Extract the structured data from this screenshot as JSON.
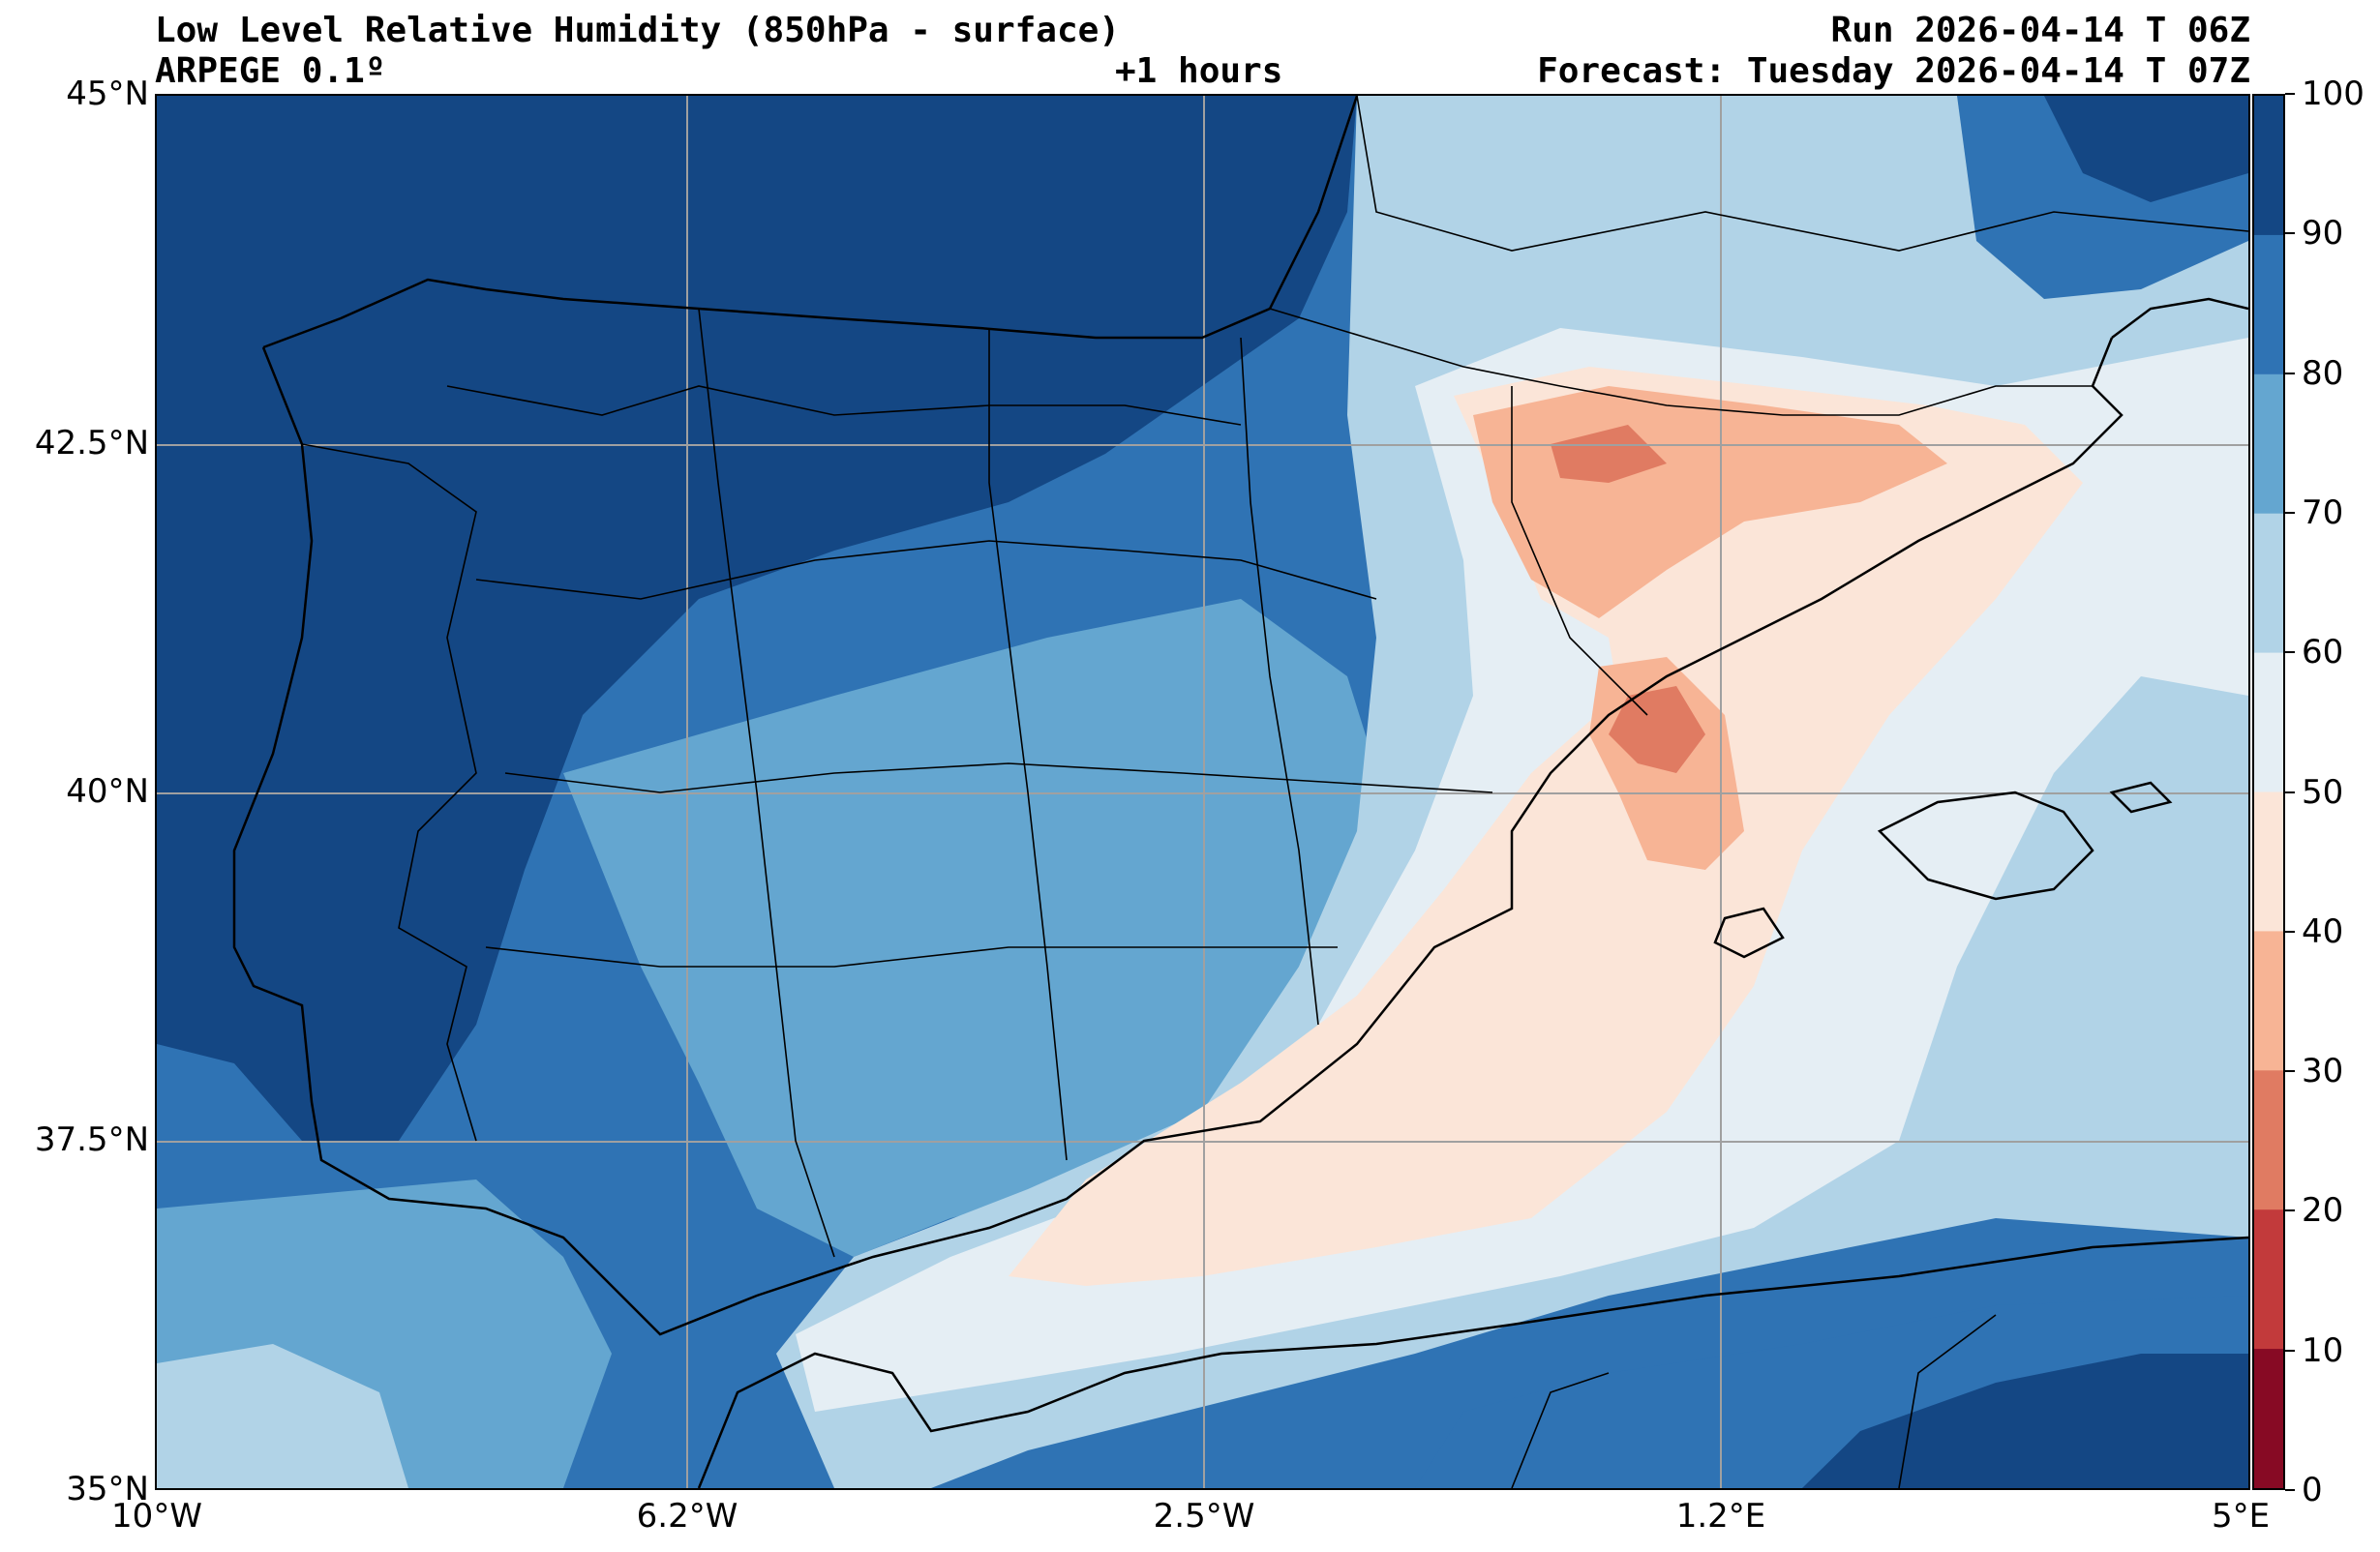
{
  "header": {
    "title_left": "Low Level Relative Humidity (850hPa - surface)",
    "model": "ARPEGE 0.1º",
    "lead_time": "+1 hours",
    "run": "Run 2026-04-14 T 06Z",
    "forecast": "Forecast: Tuesday 2026-04-14 T 07Z"
  },
  "map": {
    "region": "Iberian Peninsula and Western Mediterranean",
    "lat_ticks": [
      "45°N",
      "42.5°N",
      "40°N",
      "37.5°N",
      "35°N"
    ],
    "lon_ticks": [
      "10°W",
      "6.2°W",
      "2.5°W",
      "1.2°E",
      "5°E"
    ]
  },
  "colorbar": {
    "labels": [
      "100",
      "90",
      "80",
      "70",
      "60",
      "50",
      "40",
      "30",
      "20",
      "10",
      "0"
    ],
    "colors": [
      "#144784",
      "#2f73b4",
      "#64a6d0",
      "#b1d3e7",
      "#e5eef4",
      "#fbe5d8",
      "#f7b495",
      "#e07b62",
      "#c23a3b",
      "#870a24"
    ]
  },
  "chart_data": {
    "type": "heatmap",
    "title": "Low Level Relative Humidity (850hPa - surface)",
    "variable": "Relative Humidity (%)",
    "levels": [
      0,
      10,
      20,
      30,
      40,
      50,
      60,
      70,
      80,
      90,
      100
    ],
    "lat_range": [
      35,
      45
    ],
    "lon_range": [
      -10,
      5
    ],
    "summary": "Very moist (90-100%) over western Iberia and the Atlantic; drier (30-50%) over NE Spain, Valencia coast and the Ebro valley; moist again over northern Africa"
  }
}
